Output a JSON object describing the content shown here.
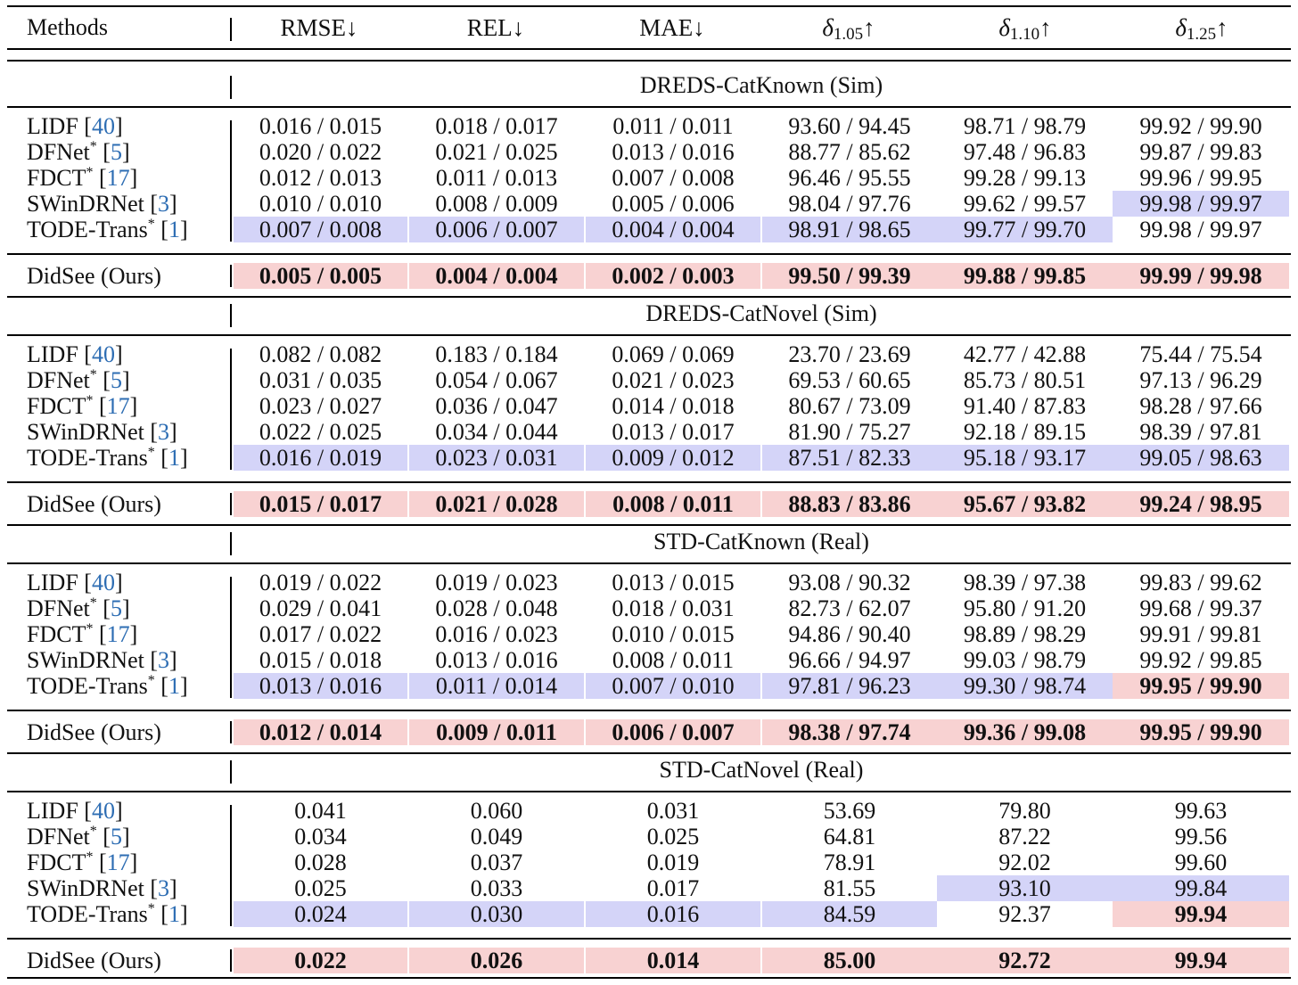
{
  "header": {
    "methods": "Methods",
    "columns": [
      {
        "label": "RMSE↓"
      },
      {
        "label": "REL↓"
      },
      {
        "label": "MAE↓"
      },
      {
        "symbol": "δ",
        "sub": "1.05",
        "arrow": "↑"
      },
      {
        "symbol": "δ",
        "sub": "1.10",
        "arrow": "↑"
      },
      {
        "symbol": "δ",
        "sub": "1.25",
        "arrow": "↑"
      }
    ]
  },
  "sections": [
    {
      "title": "DREDS-CatKnown (Sim)",
      "rows": [
        {
          "name": "LIDF",
          "star": false,
          "ref": "40",
          "values": [
            "0.016 / 0.015",
            "0.018 / 0.017",
            "0.011 / 0.011",
            "93.60 / 94.45",
            "98.71 / 98.79",
            "99.92 / 99.90"
          ],
          "hl": [
            "",
            "",
            "",
            "",
            "",
            ""
          ]
        },
        {
          "name": "DFNet",
          "star": true,
          "ref": "5",
          "values": [
            "0.020 / 0.022",
            "0.021 / 0.025",
            "0.013 / 0.016",
            "88.77 / 85.62",
            "97.48 / 96.83",
            "99.87 / 99.83"
          ],
          "hl": [
            "",
            "",
            "",
            "",
            "",
            ""
          ]
        },
        {
          "name": "FDCT",
          "star": true,
          "ref": "17",
          "values": [
            "0.012 / 0.013",
            "0.011 / 0.013",
            "0.007 / 0.008",
            "96.46 / 95.55",
            "99.28 / 99.13",
            "99.96 / 99.95"
          ],
          "hl": [
            "",
            "",
            "",
            "",
            "",
            ""
          ]
        },
        {
          "name": "SWinDRNet",
          "star": false,
          "ref": "3",
          "values": [
            "0.010 / 0.010",
            "0.008 / 0.009",
            "0.005 / 0.006",
            "98.04 / 97.76",
            "99.62 / 99.57",
            "99.98 / 99.97"
          ],
          "hl": [
            "",
            "",
            "",
            "",
            "",
            "blue"
          ]
        },
        {
          "name": "TODE-Trans",
          "star": true,
          "ref": "1",
          "values": [
            "0.007 / 0.008",
            "0.006 / 0.007",
            "0.004 / 0.004",
            "98.91 / 98.65",
            "99.77 / 99.70",
            "99.98 / 99.97"
          ],
          "hl": [
            "blue",
            "blue",
            "blue",
            "blue",
            "blue",
            ""
          ]
        }
      ],
      "ours": {
        "name": "DidSee (Ours)",
        "values": [
          "0.005 / 0.005",
          "0.004 / 0.004",
          "0.002 / 0.003",
          "99.50 / 99.39",
          "99.88 / 99.85",
          "99.99 / 99.98"
        ]
      }
    },
    {
      "title": "DREDS-CatNovel (Sim)",
      "rows": [
        {
          "name": "LIDF",
          "star": false,
          "ref": "40",
          "values": [
            "0.082 / 0.082",
            "0.183 / 0.184",
            "0.069 / 0.069",
            "23.70 / 23.69",
            "42.77 / 42.88",
            "75.44 / 75.54"
          ],
          "hl": [
            "",
            "",
            "",
            "",
            "",
            ""
          ]
        },
        {
          "name": "DFNet",
          "star": true,
          "ref": "5",
          "values": [
            "0.031 / 0.035",
            "0.054 / 0.067",
            "0.021 / 0.023",
            "69.53 / 60.65",
            "85.73 / 80.51",
            "97.13 / 96.29"
          ],
          "hl": [
            "",
            "",
            "",
            "",
            "",
            ""
          ]
        },
        {
          "name": "FDCT",
          "star": true,
          "ref": "17",
          "values": [
            "0.023 / 0.027",
            "0.036 / 0.047",
            "0.014 / 0.018",
            "80.67 / 73.09",
            "91.40 / 87.83",
            "98.28 / 97.66"
          ],
          "hl": [
            "",
            "",
            "",
            "",
            "",
            ""
          ]
        },
        {
          "name": "SWinDRNet",
          "star": false,
          "ref": "3",
          "values": [
            "0.022 / 0.025",
            "0.034 / 0.044",
            "0.013 / 0.017",
            "81.90 / 75.27",
            "92.18 / 89.15",
            "98.39 / 97.81"
          ],
          "hl": [
            "",
            "",
            "",
            "",
            "",
            ""
          ]
        },
        {
          "name": "TODE-Trans",
          "star": true,
          "ref": "1",
          "values": [
            "0.016 / 0.019",
            "0.023 / 0.031",
            "0.009 / 0.012",
            "87.51 / 82.33",
            "95.18 / 93.17",
            "99.05 / 98.63"
          ],
          "hl": [
            "blue",
            "blue",
            "blue",
            "blue",
            "blue",
            "blue"
          ]
        }
      ],
      "ours": {
        "name": "DidSee (Ours)",
        "values": [
          "0.015 / 0.017",
          "0.021 / 0.028",
          "0.008 / 0.011",
          "88.83 / 83.86",
          "95.67 / 93.82",
          "99.24 / 98.95"
        ]
      }
    },
    {
      "title": "STD-CatKnown (Real)",
      "rows": [
        {
          "name": "LIDF",
          "star": false,
          "ref": "40",
          "values": [
            "0.019 / 0.022",
            "0.019 / 0.023",
            "0.013 / 0.015",
            "93.08 / 90.32",
            "98.39 / 97.38",
            "99.83 / 99.62"
          ],
          "hl": [
            "",
            "",
            "",
            "",
            "",
            ""
          ]
        },
        {
          "name": "DFNet",
          "star": true,
          "ref": "5",
          "values": [
            "0.029 / 0.041",
            "0.028 / 0.048",
            "0.018 / 0.031",
            "82.73 / 62.07",
            "95.80 / 91.20",
            "99.68 / 99.37"
          ],
          "hl": [
            "",
            "",
            "",
            "",
            "",
            ""
          ]
        },
        {
          "name": "FDCT",
          "star": true,
          "ref": "17",
          "values": [
            "0.017 / 0.022",
            "0.016 / 0.023",
            "0.010 / 0.015",
            "94.86 / 90.40",
            "98.89 / 98.29",
            "99.91 / 99.81"
          ],
          "hl": [
            "",
            "",
            "",
            "",
            "",
            ""
          ]
        },
        {
          "name": "SWinDRNet",
          "star": false,
          "ref": "3",
          "values": [
            "0.015 / 0.018",
            "0.013 / 0.016",
            "0.008 / 0.011",
            "96.66 / 94.97",
            "99.03 / 98.79",
            "99.92 / 99.85"
          ],
          "hl": [
            "",
            "",
            "",
            "",
            "",
            ""
          ]
        },
        {
          "name": "TODE-Trans",
          "star": true,
          "ref": "1",
          "values": [
            "0.013 / 0.016",
            "0.011 / 0.014",
            "0.007 / 0.010",
            "97.81 / 96.23",
            "99.30 / 98.74",
            "99.95 / 99.90"
          ],
          "hl": [
            "blue",
            "blue",
            "blue",
            "blue",
            "blue",
            "redbold"
          ]
        }
      ],
      "ours": {
        "name": "DidSee (Ours)",
        "values": [
          "0.012 / 0.014",
          "0.009 / 0.011",
          "0.006 / 0.007",
          "98.38 / 97.74",
          "99.36 / 99.08",
          "99.95 / 99.90"
        ]
      }
    },
    {
      "title": "STD-CatNovel (Real)",
      "rows": [
        {
          "name": "LIDF",
          "star": false,
          "ref": "40",
          "values": [
            "0.041",
            "0.060",
            "0.031",
            "53.69",
            "79.80",
            "99.63"
          ],
          "hl": [
            "",
            "",
            "",
            "",
            "",
            ""
          ]
        },
        {
          "name": "DFNet",
          "star": true,
          "ref": "5",
          "values": [
            "0.034",
            "0.049",
            "0.025",
            "64.81",
            "87.22",
            "99.56"
          ],
          "hl": [
            "",
            "",
            "",
            "",
            "",
            ""
          ]
        },
        {
          "name": "FDCT",
          "star": true,
          "ref": "17",
          "values": [
            "0.028",
            "0.037",
            "0.019",
            "78.91",
            "92.02",
            "99.60"
          ],
          "hl": [
            "",
            "",
            "",
            "",
            "",
            ""
          ]
        },
        {
          "name": "SWinDRNet",
          "star": false,
          "ref": "3",
          "values": [
            "0.025",
            "0.033",
            "0.017",
            "81.55",
            "93.10",
            "99.84"
          ],
          "hl": [
            "",
            "",
            "",
            "",
            "blue",
            "blue"
          ]
        },
        {
          "name": "TODE-Trans",
          "star": true,
          "ref": "1",
          "values": [
            "0.024",
            "0.030",
            "0.016",
            "84.59",
            "92.37",
            "99.94"
          ],
          "hl": [
            "blue",
            "blue",
            "blue",
            "blue",
            "",
            "redbold"
          ]
        }
      ],
      "ours": {
        "name": "DidSee (Ours)",
        "values": [
          "0.022",
          "0.026",
          "0.014",
          "85.00",
          "92.72",
          "99.94"
        ]
      }
    }
  ]
}
